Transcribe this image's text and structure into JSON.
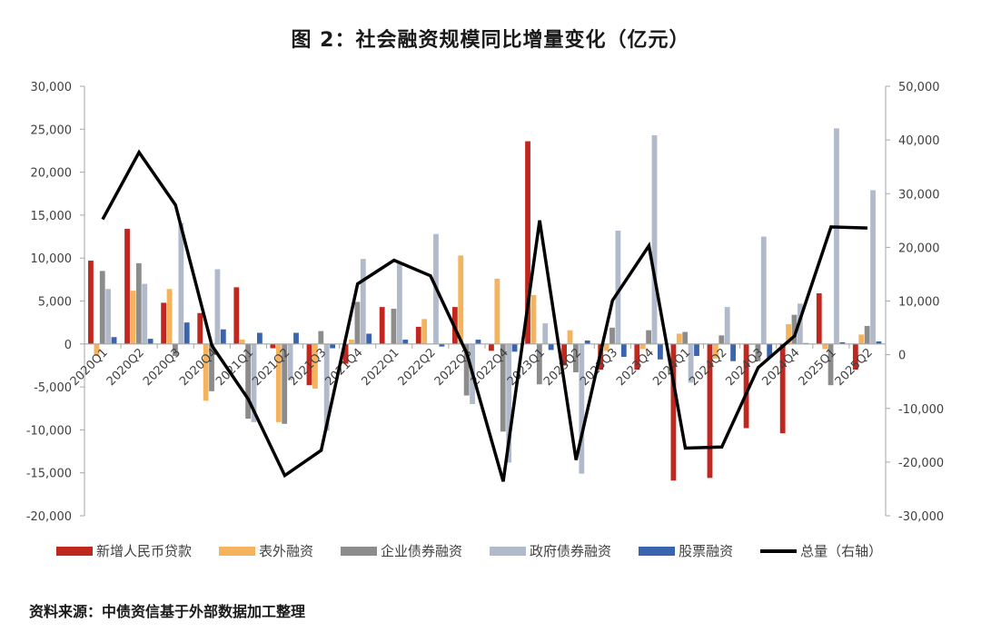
{
  "title": "图 2：社会融资规模同比增量变化（亿元）",
  "source": "资料来源：中债资信基于外部数据加工整理",
  "colors": {
    "loans": "#C0271F",
    "offbalance": "#F5B35E",
    "corpbond": "#8C8C8C",
    "govbond": "#B0BACB",
    "equity": "#3A64B0",
    "total": "#000000",
    "axis": "#A6A6A6"
  },
  "legend": [
    {
      "key": "loans",
      "label": "新增人民币贷款",
      "type": "bar"
    },
    {
      "key": "offbalance",
      "label": "表外融资",
      "type": "bar"
    },
    {
      "key": "corpbond",
      "label": "企业债券融资",
      "type": "bar"
    },
    {
      "key": "govbond",
      "label": "政府债券融资",
      "type": "bar"
    },
    {
      "key": "equity",
      "label": "股票融资",
      "type": "bar"
    },
    {
      "key": "total",
      "label": "总量（右轴）",
      "type": "line"
    }
  ],
  "chart_data": {
    "type": "bar+line",
    "title": "图 2：社会融资规模同比增量变化（亿元）",
    "xlabel": "",
    "ylabel": "",
    "categories": [
      "2020Q1",
      "2020Q2",
      "2020Q3",
      "2020Q4",
      "2021Q1",
      "2021Q2",
      "2021Q3",
      "2021Q4",
      "2022Q1",
      "2022Q2",
      "2022Q3",
      "2022Q4",
      "2023Q1",
      "2023Q2",
      "2023Q3",
      "2023Q4",
      "2024Q1",
      "2024Q2",
      "2024Q3",
      "2024Q4",
      "2025Q1",
      "2025Q2"
    ],
    "left_axis": {
      "ylim": [
        -20000,
        30000
      ],
      "ticks": [
        "30,000",
        "25,000",
        "20,000",
        "15,000",
        "10,000",
        "5,000",
        "0",
        "-5,000",
        "-10,000",
        "-15,000",
        "-20,000"
      ]
    },
    "right_axis": {
      "ylim": [
        -30000,
        50000
      ],
      "ticks": [
        "50,000",
        "40,000",
        "30,000",
        "20,000",
        "10,000",
        "0",
        "-10,000",
        "-20,000",
        "-30,000"
      ]
    },
    "legend_position": "bottom",
    "grid": false,
    "series": [
      {
        "name": "新增人民币贷款",
        "key": "loans",
        "axis": "left",
        "type": "bar",
        "values": [
          9700,
          13400,
          4800,
          3600,
          6600,
          -500,
          -4800,
          -2300,
          4300,
          2000,
          4300,
          -800,
          23600,
          -2500,
          -3000,
          -3000,
          -15900,
          -15600,
          -9800,
          -10400,
          5900,
          -3000
        ]
      },
      {
        "name": "表外融资",
        "key": "offbalance",
        "axis": "left",
        "type": "bar",
        "values": [
          -1400,
          6200,
          6400,
          -6600,
          500,
          -9100,
          -5200,
          500,
          0,
          2900,
          10300,
          7600,
          5700,
          1600,
          -800,
          -600,
          1200,
          -1700,
          -100,
          2300,
          -600,
          1100
        ]
      },
      {
        "name": "企业债券融资",
        "key": "corpbond",
        "axis": "left",
        "type": "bar",
        "values": [
          8500,
          9400,
          -1400,
          -5500,
          -8700,
          -9300,
          1500,
          4900,
          4100,
          0,
          -6000,
          -10200,
          -4700,
          -3300,
          1900,
          1600,
          1400,
          1000,
          -2000,
          3400,
          -4800,
          2100
        ]
      },
      {
        "name": "政府债券融资",
        "key": "govbond",
        "axis": "left",
        "type": "bar",
        "values": [
          6400,
          7000,
          14100,
          8700,
          -9100,
          -4200,
          -10100,
          9900,
          9400,
          12800,
          -7000,
          -13800,
          2400,
          -15100,
          13200,
          24300,
          -4500,
          4300,
          12500,
          4700,
          25100,
          17900
        ]
      },
      {
        "name": "股票融资",
        "key": "equity",
        "axis": "left",
        "type": "bar",
        "values": [
          800,
          600,
          2500,
          1700,
          1300,
          1300,
          -500,
          1200,
          500,
          -300,
          500,
          -900,
          -700,
          400,
          -1500,
          -1800,
          -1400,
          -2000,
          -1600,
          100,
          200,
          300
        ]
      },
      {
        "name": "总量（右轴）",
        "key": "total",
        "axis": "right",
        "type": "line",
        "values": [
          25200,
          37700,
          27900,
          1700,
          -8300,
          -22500,
          -17800,
          13200,
          17600,
          14700,
          200,
          -23600,
          25000,
          -19600,
          10100,
          20300,
          -17400,
          -17200,
          -2400,
          3500,
          23800,
          23600
        ]
      }
    ]
  }
}
